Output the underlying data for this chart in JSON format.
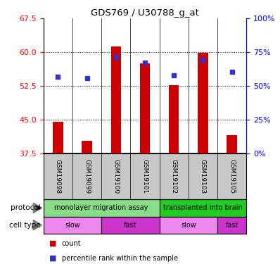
{
  "title": "GDS769 / U30788_g_at",
  "samples": [
    "GSM19098",
    "GSM19099",
    "GSM19100",
    "GSM19101",
    "GSM19102",
    "GSM19103",
    "GSM19105"
  ],
  "counts": [
    44.5,
    40.2,
    61.2,
    57.5,
    52.7,
    59.9,
    41.5
  ],
  "percentile_ranks": [
    56.5,
    55.5,
    71.5,
    67.0,
    58.0,
    69.5,
    60.5
  ],
  "y_min": 37.5,
  "y_max": 67.5,
  "y_ticks": [
    37.5,
    45.0,
    52.5,
    60.0,
    67.5
  ],
  "right_y_ticks": [
    0,
    25,
    50,
    75,
    100
  ],
  "right_y_labels": [
    "0%",
    "25%",
    "50%",
    "75%",
    "100%"
  ],
  "bar_color": "#cc0000",
  "dot_color": "#3333cc",
  "bar_width": 0.35,
  "protocol_groups": [
    {
      "label": "monolayer migration assay",
      "start": 0,
      "end": 4,
      "color": "#88dd88"
    },
    {
      "label": "transplanted into brain",
      "start": 4,
      "end": 7,
      "color": "#22cc22"
    }
  ],
  "celltype_groups": [
    {
      "label": "slow",
      "start": 0,
      "end": 2,
      "color": "#ee88ee"
    },
    {
      "label": "fast",
      "start": 2,
      "end": 4,
      "color": "#cc33cc"
    },
    {
      "label": "slow",
      "start": 4,
      "end": 6,
      "color": "#ee88ee"
    },
    {
      "label": "fast",
      "start": 6,
      "end": 7,
      "color": "#cc33cc"
    }
  ],
  "legend_items": [
    {
      "label": "count",
      "color": "#cc0000"
    },
    {
      "label": "percentile rank within the sample",
      "color": "#3333cc"
    }
  ],
  "grid_lines": [
    45.0,
    52.5,
    60.0
  ],
  "sample_bg_color": "#c8c8c8",
  "protocol_label": "protocol",
  "celltype_label": "cell type"
}
